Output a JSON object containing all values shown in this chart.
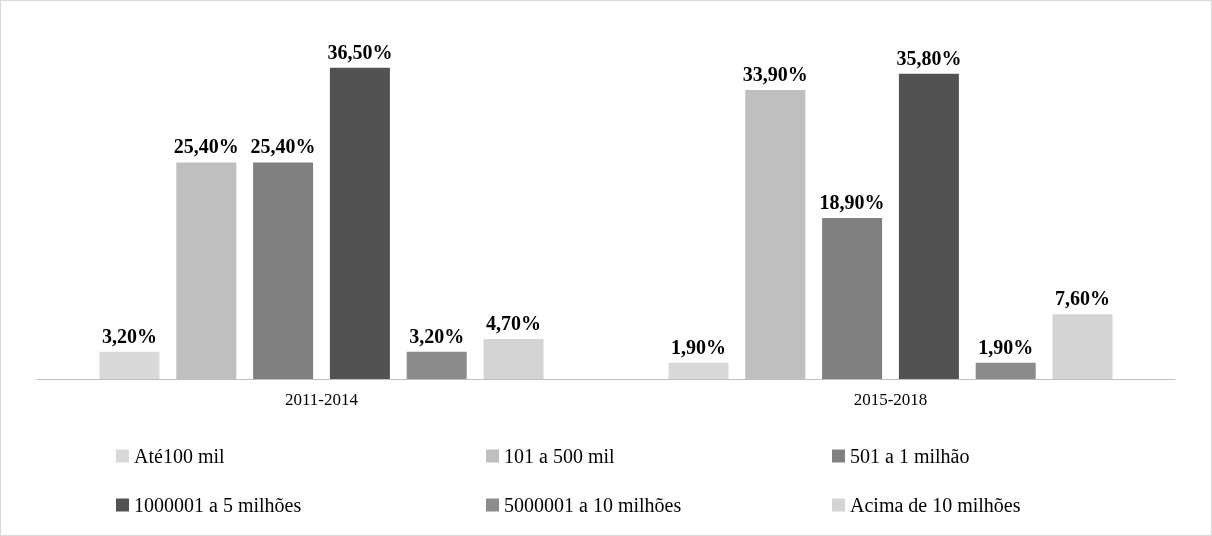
{
  "chart_data": {
    "type": "bar",
    "categories": [
      "2011-2014",
      "2015-2018"
    ],
    "legend": "bottom",
    "series": [
      {
        "name": "Até100 mil",
        "color": "#d9d9d9",
        "values": [
          3.2,
          1.9
        ],
        "value_labels": [
          "3,20%",
          "1,90%"
        ]
      },
      {
        "name": "101 a 500 mil",
        "color": "#bfbfbf",
        "values": [
          25.4,
          33.9
        ],
        "value_labels": [
          "25,40%",
          "33,90%"
        ]
      },
      {
        "name": "501 a 1 milhão",
        "color": "#808080",
        "values": [
          25.4,
          18.9
        ],
        "value_labels": [
          "25,40%",
          "18,90%"
        ]
      },
      {
        "name": "1000001 a 5 milhões",
        "color": "#525252",
        "values": [
          36.5,
          35.8
        ],
        "value_labels": [
          "36,50%",
          "35,80%"
        ]
      },
      {
        "name": "5000001 a 10 milhões",
        "color": "#8c8c8c",
        "values": [
          3.2,
          1.9
        ],
        "value_labels": [
          "3,20%",
          "1,90%"
        ]
      },
      {
        "name": "Acima de 10 milhões",
        "color": "#d4d4d4",
        "values": [
          4.7,
          7.6
        ],
        "value_labels": [
          "4,70%",
          "7,60%"
        ]
      }
    ]
  }
}
